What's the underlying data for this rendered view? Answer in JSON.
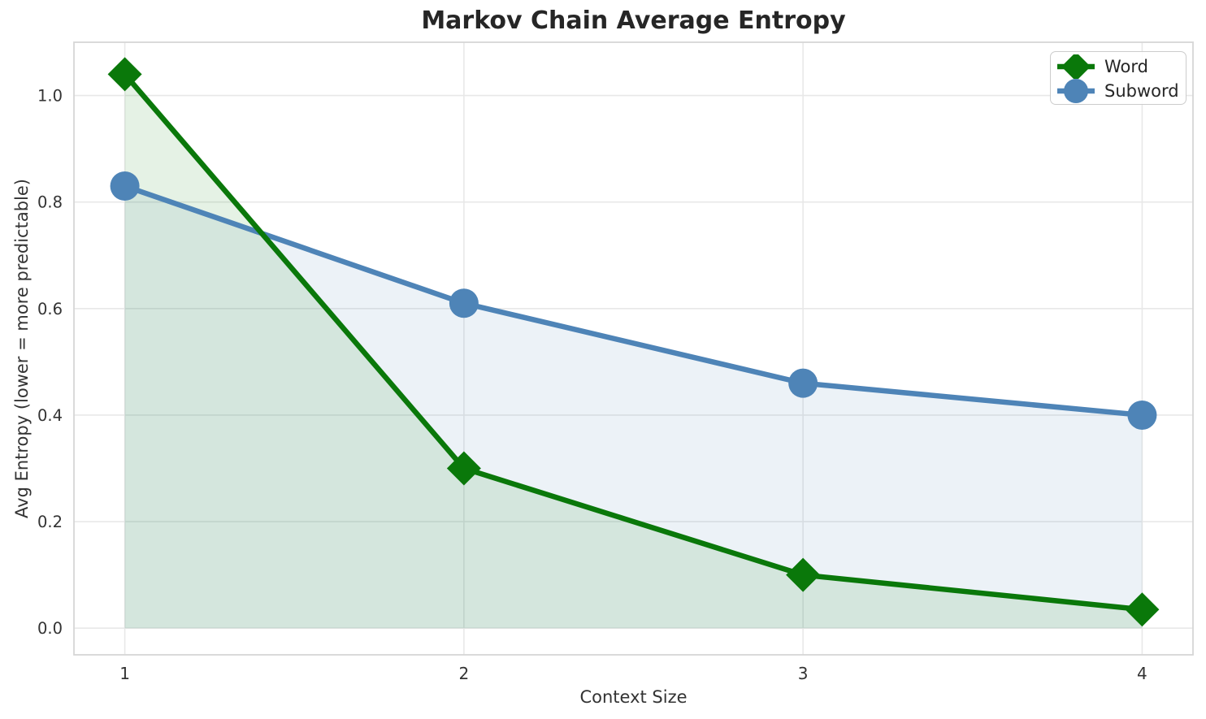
{
  "chart_data": {
    "type": "line",
    "title": "Markov Chain Average Entropy",
    "xlabel": "Context Size",
    "ylabel": "Avg Entropy (lower = more predictable)",
    "x": [
      1,
      2,
      3,
      4
    ],
    "series": [
      {
        "name": "Word",
        "values": [
          1.04,
          0.3,
          0.1,
          0.035
        ],
        "color": "#0a780a",
        "fill": "rgba(0,128,0,0.10)",
        "marker": "diamond"
      },
      {
        "name": "Subword",
        "values": [
          0.83,
          0.61,
          0.46,
          0.4
        ],
        "color": "#4e84b7",
        "fill": "rgba(70,130,180,0.10)",
        "marker": "circle"
      }
    ],
    "xticks": [
      1,
      2,
      3,
      4
    ],
    "yticks": [
      0.0,
      0.2,
      0.4,
      0.6,
      0.8,
      1.0
    ],
    "xlim": [
      0.85,
      4.15
    ],
    "ylim": [
      -0.05,
      1.1
    ],
    "grid": true,
    "fill_to_zero": true,
    "legend_position": "upper right",
    "colors": {
      "grid": "#e8e8e8",
      "spine": "#d6d6d6",
      "tick_text": "#333333",
      "title_text": "#262626"
    }
  }
}
